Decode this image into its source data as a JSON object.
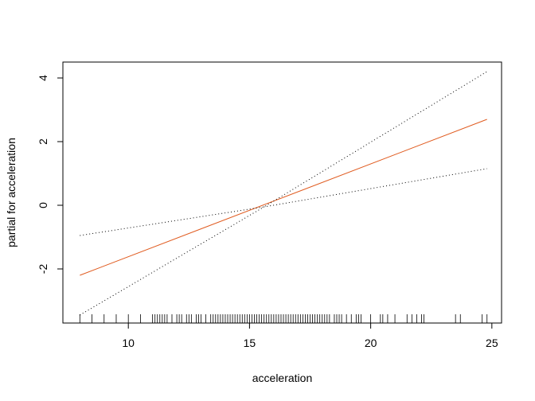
{
  "chart_data": {
    "type": "line",
    "title": "",
    "xlabel": "acceleration",
    "ylabel": "partial for acceleration",
    "xlim": [
      7.3,
      25.4
    ],
    "ylim": [
      -3.7,
      4.5
    ],
    "x_ticks": [
      10,
      15,
      20,
      25
    ],
    "y_ticks": [
      -2,
      0,
      2,
      4
    ],
    "x_tick_labels": [
      "10",
      "15",
      "20",
      "25"
    ],
    "y_tick_labels": [
      "-2",
      "0",
      "2",
      "4"
    ],
    "grid": false,
    "legend": "none",
    "series": [
      {
        "role": "fit",
        "style": "solid",
        "color": "#e05a1e",
        "x": [
          8.0,
          24.8
        ],
        "y": [
          -2.2,
          2.7
        ]
      },
      {
        "role": "upper-band",
        "style": "dotted",
        "color": "#000000",
        "x": [
          8.0,
          15.6,
          24.8
        ],
        "y": [
          -0.95,
          -0.05,
          4.2
        ]
      },
      {
        "role": "lower-band",
        "style": "dotted",
        "color": "#000000",
        "x": [
          8.0,
          15.6,
          24.8
        ],
        "y": [
          -3.45,
          -0.05,
          1.15
        ]
      }
    ],
    "rug": [
      8.0,
      8.5,
      9.0,
      9.5,
      10.0,
      10.5,
      11.0,
      11.1,
      11.2,
      11.3,
      11.4,
      11.5,
      11.6,
      11.8,
      12.0,
      12.1,
      12.2,
      12.4,
      12.5,
      12.6,
      12.8,
      12.9,
      13.0,
      13.2,
      13.4,
      13.5,
      13.6,
      13.7,
      13.8,
      13.9,
      14.0,
      14.1,
      14.2,
      14.3,
      14.4,
      14.5,
      14.6,
      14.7,
      14.8,
      14.9,
      15.0,
      15.1,
      15.2,
      15.3,
      15.4,
      15.5,
      15.6,
      15.7,
      15.8,
      15.9,
      16.0,
      16.1,
      16.2,
      16.3,
      16.4,
      16.5,
      16.6,
      16.7,
      16.8,
      16.9,
      17.0,
      17.1,
      17.2,
      17.3,
      17.4,
      17.5,
      17.6,
      17.7,
      17.8,
      17.9,
      18.0,
      18.1,
      18.2,
      18.3,
      18.5,
      18.6,
      18.7,
      18.8,
      19.0,
      19.2,
      19.4,
      19.5,
      19.6,
      20.0,
      20.4,
      20.5,
      20.7,
      21.0,
      21.5,
      21.7,
      21.9,
      22.1,
      22.2,
      23.5,
      23.7,
      24.6,
      24.8
    ]
  }
}
